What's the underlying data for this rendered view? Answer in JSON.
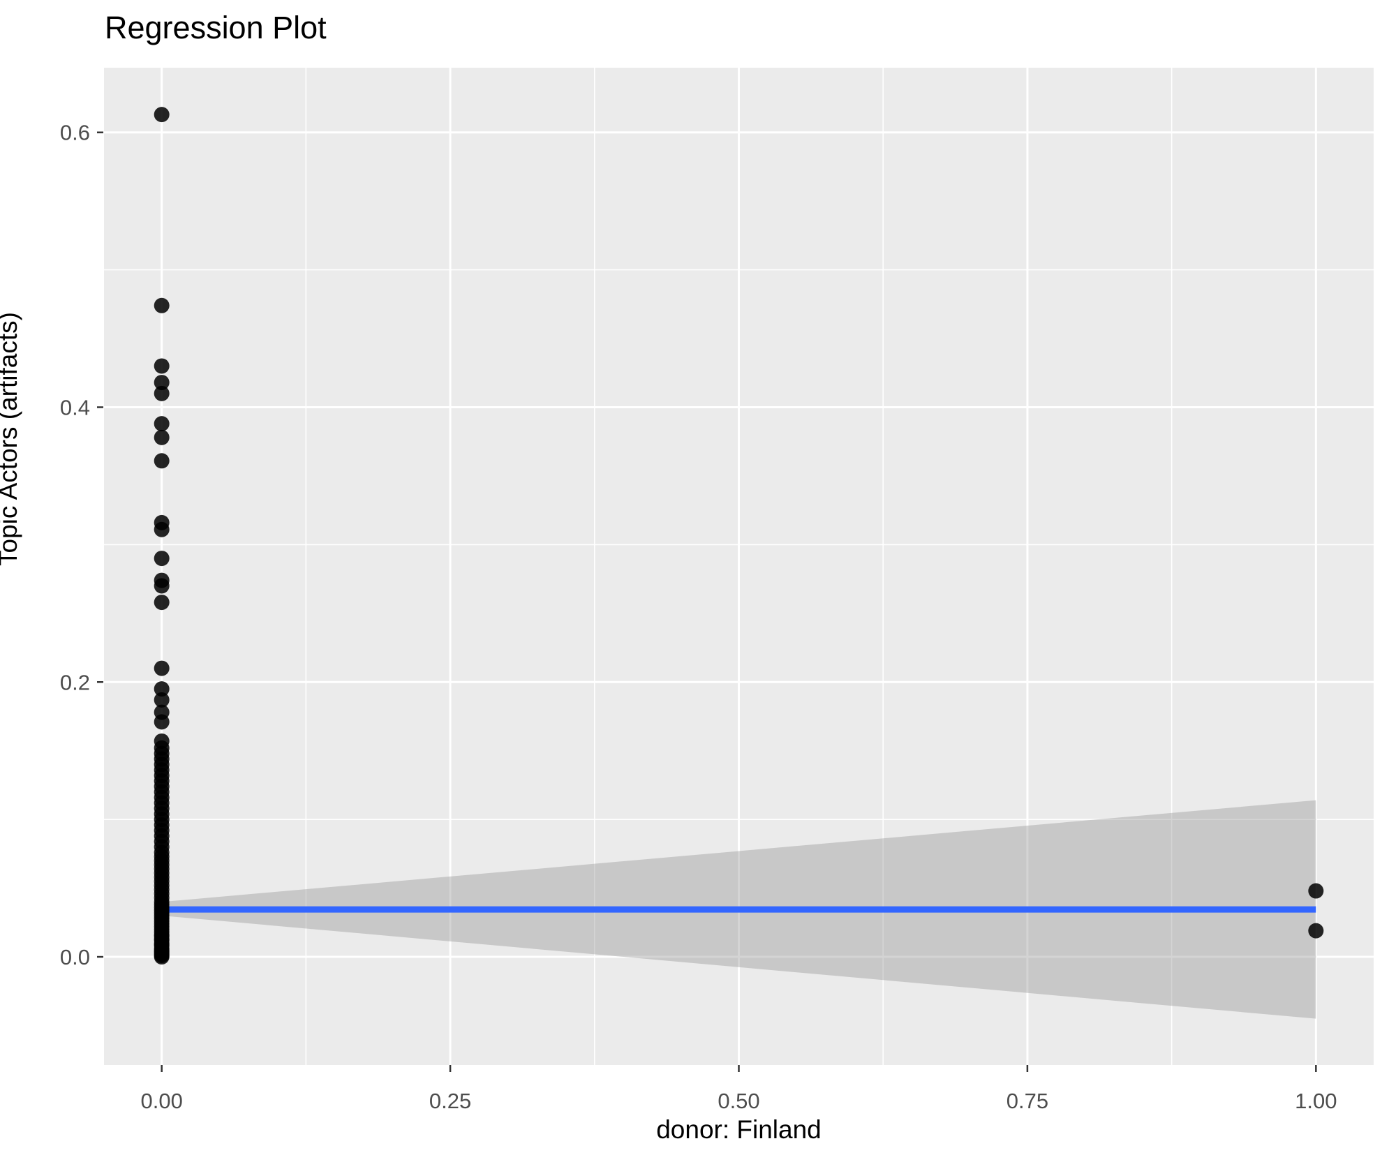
{
  "chart_data": {
    "type": "scatter",
    "title": "Regression Plot",
    "xlabel": "donor: Finland",
    "ylabel": "Topic Actors (artifacts)",
    "x_axis": {
      "range": [
        -0.05,
        1.05
      ],
      "ticks": [
        {
          "value": 0.0,
          "label": "0.00"
        },
        {
          "value": 0.25,
          "label": "0.25"
        },
        {
          "value": 0.5,
          "label": "0.50"
        },
        {
          "value": 0.75,
          "label": "0.75"
        },
        {
          "value": 1.0,
          "label": "1.00"
        }
      ],
      "minor_ticks": [
        0.125,
        0.375,
        0.625,
        0.875
      ]
    },
    "y_axis": {
      "range": [
        -0.0787,
        0.6471
      ],
      "ticks": [
        {
          "value": 0.0,
          "label": "0.0"
        },
        {
          "value": 0.2,
          "label": "0.2"
        },
        {
          "value": 0.4,
          "label": "0.4"
        },
        {
          "value": 0.6,
          "label": "0.6"
        }
      ],
      "minor_ticks": [
        0.1,
        0.3,
        0.5
      ]
    },
    "grid": "on",
    "legend": "none",
    "points": [
      {
        "x": 0,
        "y_values": [
          0.613,
          0.474,
          0.43,
          0.418,
          0.41,
          0.388,
          0.378,
          0.361,
          0.316,
          0.311,
          0.29,
          0.274,
          0.27,
          0.258,
          0.21,
          0.195,
          0.187,
          0.178,
          0.171,
          0.157,
          0.152,
          0.148,
          0.144,
          0.14,
          0.136,
          0.132,
          0.128,
          0.124,
          0.12,
          0.116,
          0.112,
          0.108,
          0.104,
          0.1,
          0.096,
          0.092,
          0.088,
          0.084,
          0.08,
          0.076,
          0.073,
          0.07,
          0.067,
          0.064,
          0.061,
          0.058,
          0.055,
          0.052,
          0.049,
          0.046,
          0.043,
          0.04,
          0.038,
          0.036,
          0.034,
          0.032,
          0.03,
          0.028,
          0.026,
          0.024,
          0.022,
          0.02,
          0.018,
          0.016,
          0.015,
          0.013,
          0.012,
          0.01,
          0.009,
          0.008,
          0.006,
          0.005,
          0.004,
          0.003,
          0.002,
          0.001,
          0.0
        ]
      },
      {
        "x": 1,
        "y_values": [
          0.048,
          0.019
        ]
      }
    ],
    "regression_line": {
      "x": [
        0,
        1
      ],
      "y": [
        0.0345,
        0.0345
      ]
    },
    "confidence_band": {
      "polygon": [
        [
          0,
          0.04
        ],
        [
          1,
          0.114
        ],
        [
          1,
          -0.045
        ],
        [
          0,
          0.03
        ]
      ]
    },
    "style": {
      "panel_bg": "#EBEBEB",
      "grid_color": "#FFFFFF",
      "point_color": "#000000",
      "point_opacity": 0.85,
      "point_radius": 11,
      "line_color": "#3366FF",
      "line_width": 9,
      "band_color": "#999999",
      "band_opacity": 0.42,
      "tick_label_color": "#4D4D4D",
      "tick_mark_color": "#333333",
      "title_color": "#000000"
    }
  }
}
